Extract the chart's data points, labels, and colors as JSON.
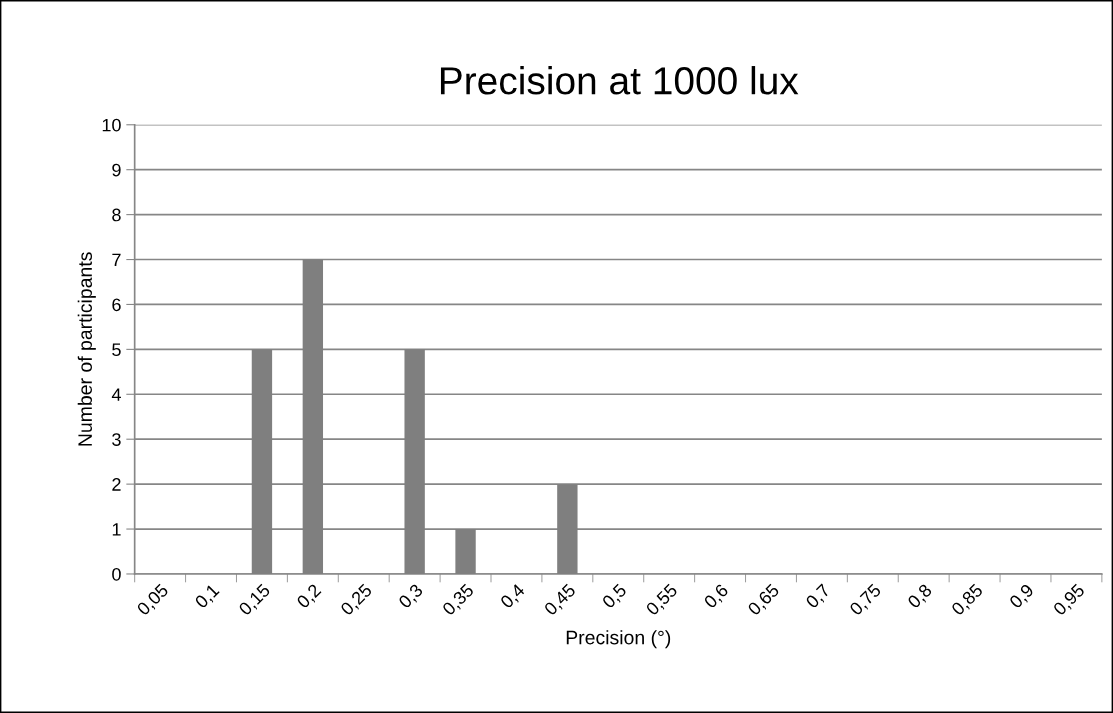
{
  "chart_data": {
    "type": "bar",
    "title": "Precision at 1000 lux",
    "xlabel": "Precision (°)",
    "ylabel": "Number of participants",
    "categories": [
      "0,05",
      "0,1",
      "0,15",
      "0,2",
      "0,25",
      "0,3",
      "0,35",
      "0,4",
      "0,45",
      "0,5",
      "0,55",
      "0,6",
      "0,65",
      "0,7",
      "0,75",
      "0,8",
      "0,85",
      "0,9",
      "0,95"
    ],
    "values": [
      0,
      0,
      5,
      7,
      0,
      5,
      1,
      0,
      2,
      0,
      0,
      0,
      0,
      0,
      0,
      0,
      0,
      0,
      0
    ],
    "color": "#7f7f7f",
    "ylim": [
      0,
      10
    ],
    "yticks": [
      0,
      1,
      2,
      3,
      4,
      5,
      6,
      7,
      8,
      9,
      10
    ],
    "grid": "y",
    "legend": false
  }
}
